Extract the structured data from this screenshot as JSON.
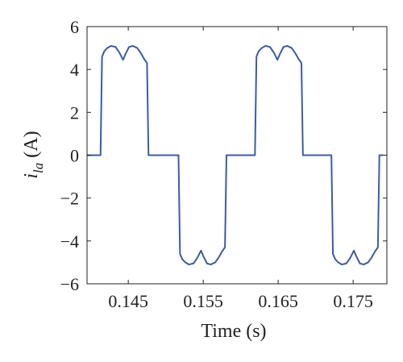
{
  "chart_data": {
    "type": "line",
    "title": "",
    "xlabel": "Time (s)",
    "ylabel": {
      "main": "i",
      "sub": "la",
      "unit": "(A)"
    },
    "xlim": [
      0.1395,
      0.1795
    ],
    "ylim": [
      -6,
      6
    ],
    "xticks": [
      0.145,
      0.155,
      0.165,
      0.175
    ],
    "xtick_labels": [
      "0.145",
      "0.155",
      "0.165",
      "0.175"
    ],
    "yticks": [
      -6,
      -4,
      -2,
      0,
      2,
      4,
      6
    ],
    "ytick_labels": [
      "−6",
      "−4",
      "−2",
      "0",
      "2",
      "4",
      "6"
    ],
    "grid": false,
    "legend": "none",
    "series": [
      {
        "color": "#3a5ca8",
        "x": [
          0.1395,
          0.1413,
          0.1415,
          0.1418,
          0.1422,
          0.1427,
          0.1433,
          0.1438,
          0.1443,
          0.1446,
          0.1451,
          0.1456,
          0.1462,
          0.1467,
          0.1471,
          0.1475,
          0.1477,
          0.1479,
          0.1482,
          0.1484,
          0.1502,
          0.1517,
          0.1519,
          0.1522,
          0.1526,
          0.1531,
          0.1537,
          0.1542,
          0.1547,
          0.155,
          0.1555,
          0.156,
          0.1566,
          0.1571,
          0.1575,
          0.1579,
          0.1581,
          0.1583,
          0.1586,
          0.1588,
          0.1606,
          0.1619,
          0.1621,
          0.1624,
          0.1628,
          0.1633,
          0.1639,
          0.1644,
          0.1649,
          0.1652,
          0.1657,
          0.1662,
          0.1668,
          0.1673,
          0.1677,
          0.1681,
          0.1683,
          0.1685,
          0.1688,
          0.169,
          0.1708,
          0.1721,
          0.1723,
          0.1726,
          0.173,
          0.1735,
          0.1741,
          0.1746,
          0.1751,
          0.1754,
          0.1759,
          0.1764,
          0.177,
          0.1775,
          0.1779,
          0.1783,
          0.1785,
          0.1787,
          0.1788,
          0.179
        ],
        "y": [
          0,
          0,
          4.6,
          4.85,
          5.0,
          5.1,
          5.05,
          4.8,
          4.45,
          4.7,
          5.05,
          5.1,
          5.0,
          4.75,
          4.5,
          4.3,
          0,
          0,
          0,
          0,
          0,
          0,
          -4.6,
          -4.85,
          -5.0,
          -5.1,
          -5.05,
          -4.8,
          -4.45,
          -4.7,
          -5.05,
          -5.1,
          -5.0,
          -4.75,
          -4.5,
          -4.3,
          0,
          0,
          0,
          0,
          0,
          0,
          4.6,
          4.85,
          5.0,
          5.1,
          5.05,
          4.8,
          4.45,
          4.7,
          5.05,
          5.1,
          5.0,
          4.75,
          4.5,
          4.3,
          0,
          0,
          0,
          0,
          0,
          0,
          -4.6,
          -4.85,
          -5.0,
          -5.1,
          -5.05,
          -4.8,
          -4.45,
          -4.7,
          -5.05,
          -5.1,
          -5.0,
          -4.75,
          -4.5,
          -4.3,
          0,
          0,
          0,
          0
        ]
      }
    ]
  }
}
